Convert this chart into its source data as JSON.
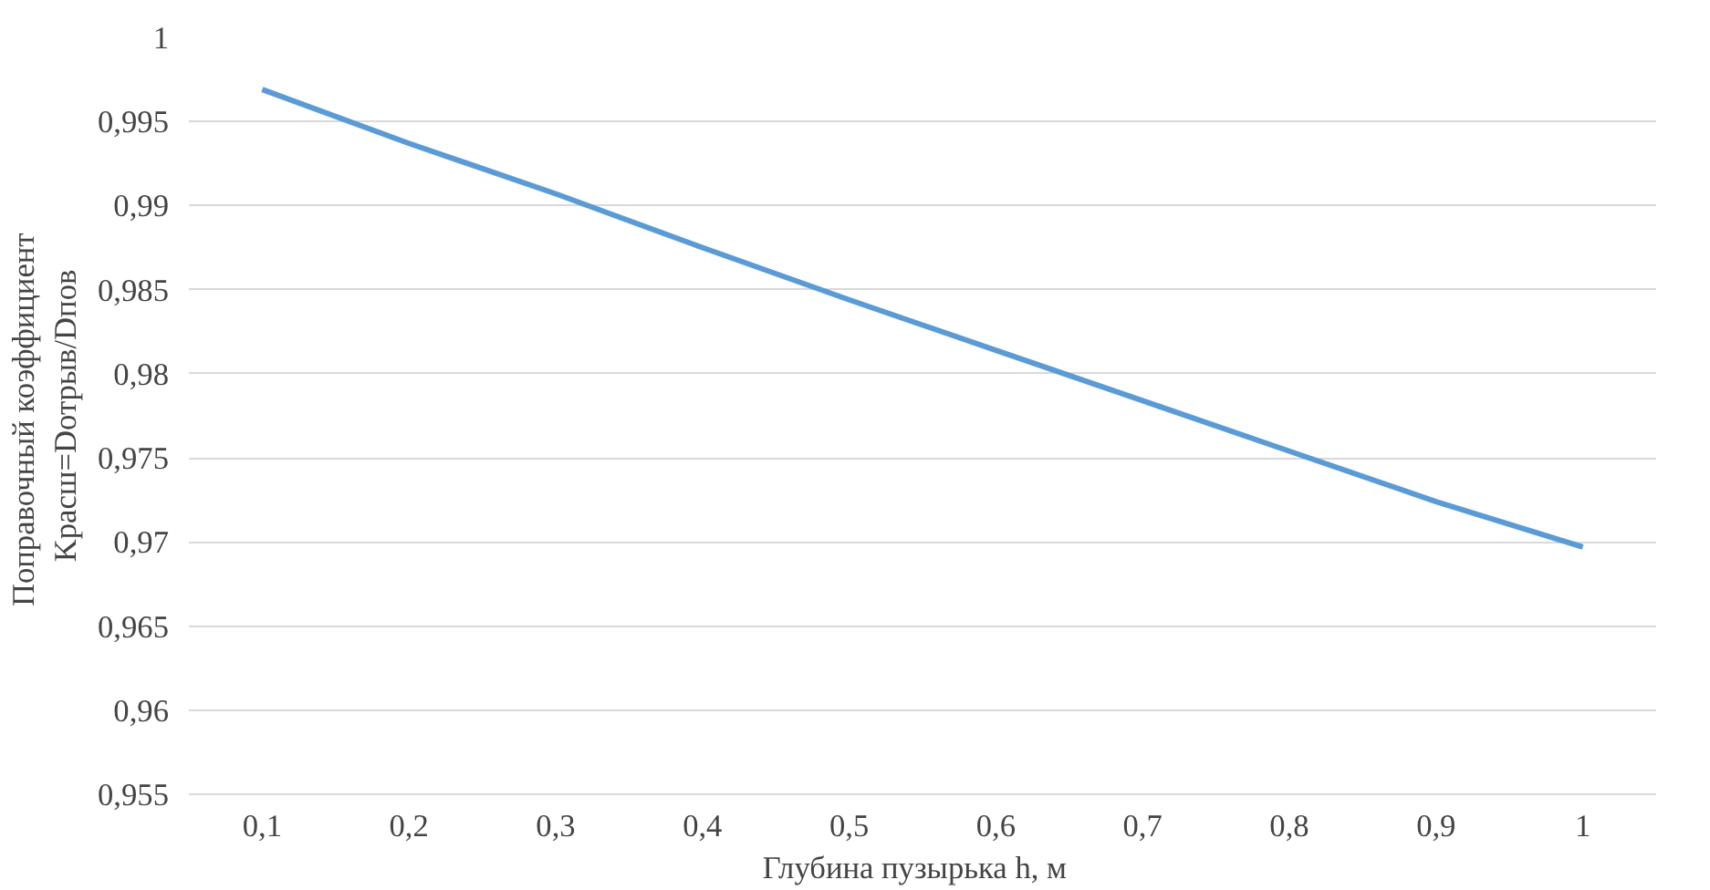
{
  "chart_data": {
    "type": "line",
    "xlabel": "Глубина  пузырька  h, м",
    "ylabel": "Поправочный  коэффициент\nKрасш=Dотрыв/Dпов",
    "categories": [
      "0,1",
      "0,2",
      "0,3",
      "0,4",
      "0,5",
      "0,6",
      "0,7",
      "0,8",
      "0,9",
      "1"
    ],
    "series": [
      {
        "color": "#5b9bd5",
        "values": [
          0.9969,
          0.9937,
          0.9907,
          0.9875,
          0.9844,
          0.9814,
          0.9784,
          0.9754,
          0.9724,
          0.9697
        ]
      }
    ],
    "ylim": [
      0.955,
      1
    ],
    "yticks": [
      {
        "value": 0.955,
        "label": "0,955"
      },
      {
        "value": 0.96,
        "label": "0,96"
      },
      {
        "value": 0.965,
        "label": "0,965"
      },
      {
        "value": 0.97,
        "label": "0,97"
      },
      {
        "value": 0.975,
        "label": "0,975"
      },
      {
        "value": 0.98,
        "label": "0,98"
      },
      {
        "value": 0.985,
        "label": "0,985"
      },
      {
        "value": 0.99,
        "label": "0,99"
      },
      {
        "value": 0.995,
        "label": "0,995"
      },
      {
        "value": 1,
        "label": "1"
      }
    ],
    "grid": "y",
    "marker": "none",
    "line_style": "solid"
  }
}
